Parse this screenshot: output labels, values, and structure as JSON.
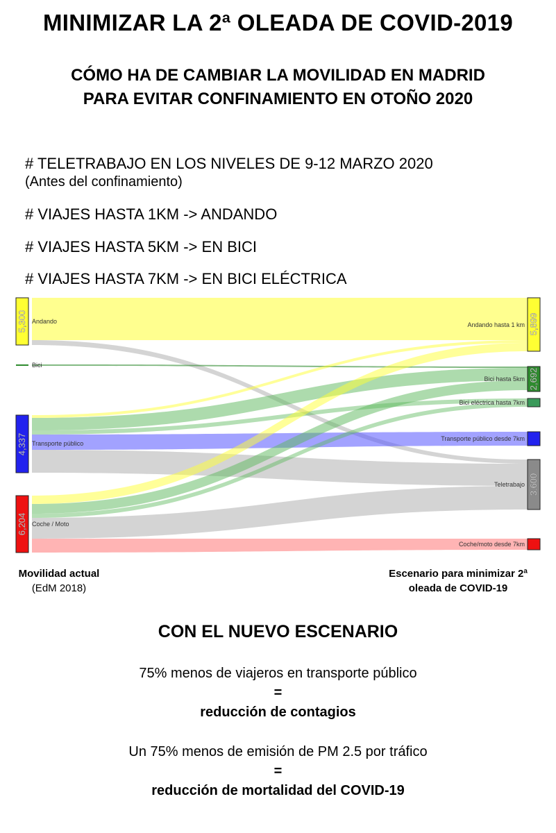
{
  "header": {
    "title": "MINIMIZAR LA 2ª OLEADA DE COVID-2019",
    "subtitle_line1": "CÓMO HA DE CAMBIAR LA MOVILIDAD EN MADRID",
    "subtitle_line2": "PARA EVITAR CONFINAMIENTO EN OTOÑO 2020"
  },
  "assumptions": {
    "a1": "# TELETRABAJO EN LOS NIVELES DE 9-12 MARZO 2020",
    "a1_note": "(Antes del confinamiento)",
    "a2": "# VIAJES HASTA 1KM -> ANDANDO",
    "a3": "# VIAJES HASTA 5KM -> EN BICI",
    "a4": "# VIAJES HASTA 7KM -> EN BICI ELÉCTRICA"
  },
  "sankey": {
    "left_nodes": [
      {
        "label": "Andando",
        "value_label": "5,300",
        "color": "#ffff33"
      },
      {
        "label": "Bici",
        "value_label": "",
        "color": "#2e8b2e"
      },
      {
        "label": "Transporte público",
        "value_label": "4,337",
        "color": "#2222ee"
      },
      {
        "label": "Coche / Moto",
        "value_label": "6,204",
        "color": "#ee1111"
      }
    ],
    "right_nodes": [
      {
        "label": "Andando hasta 1 km",
        "value_label": "5,899",
        "color": "#ffff33"
      },
      {
        "label": "Bici hasta 5km",
        "value_label": "2,692",
        "color": "#2e8b2e"
      },
      {
        "label": "Bici eléctrica hasta 7km",
        "value_label": "",
        "color": "#3a9a5a"
      },
      {
        "label": "Transporte público desde 7km",
        "value_label": "",
        "color": "#2222ee"
      },
      {
        "label": "Teletrabajo",
        "value_label": "3,600",
        "color": "#8a8a8a"
      },
      {
        "label": "Coche/moto desde 7km",
        "value_label": "",
        "color": "#ee1111"
      }
    ]
  },
  "axis": {
    "left_label": "Movilidad actual",
    "left_sub": "(EdM 2018)",
    "right_label_1": "Escenario para minimizar 2ª",
    "right_label_2": "oleada de COVID-19"
  },
  "conclusions": {
    "heading": "CON EL NUEVO ESCENARIO",
    "s1": "75% menos de viajeros en transporte público",
    "eq": "=",
    "r1": "reducción de contagios",
    "s2": "Un 75% menos de emisión de PM 2.5 por tráfico",
    "r2": "reducción de mortalidad del COVID-19"
  }
}
